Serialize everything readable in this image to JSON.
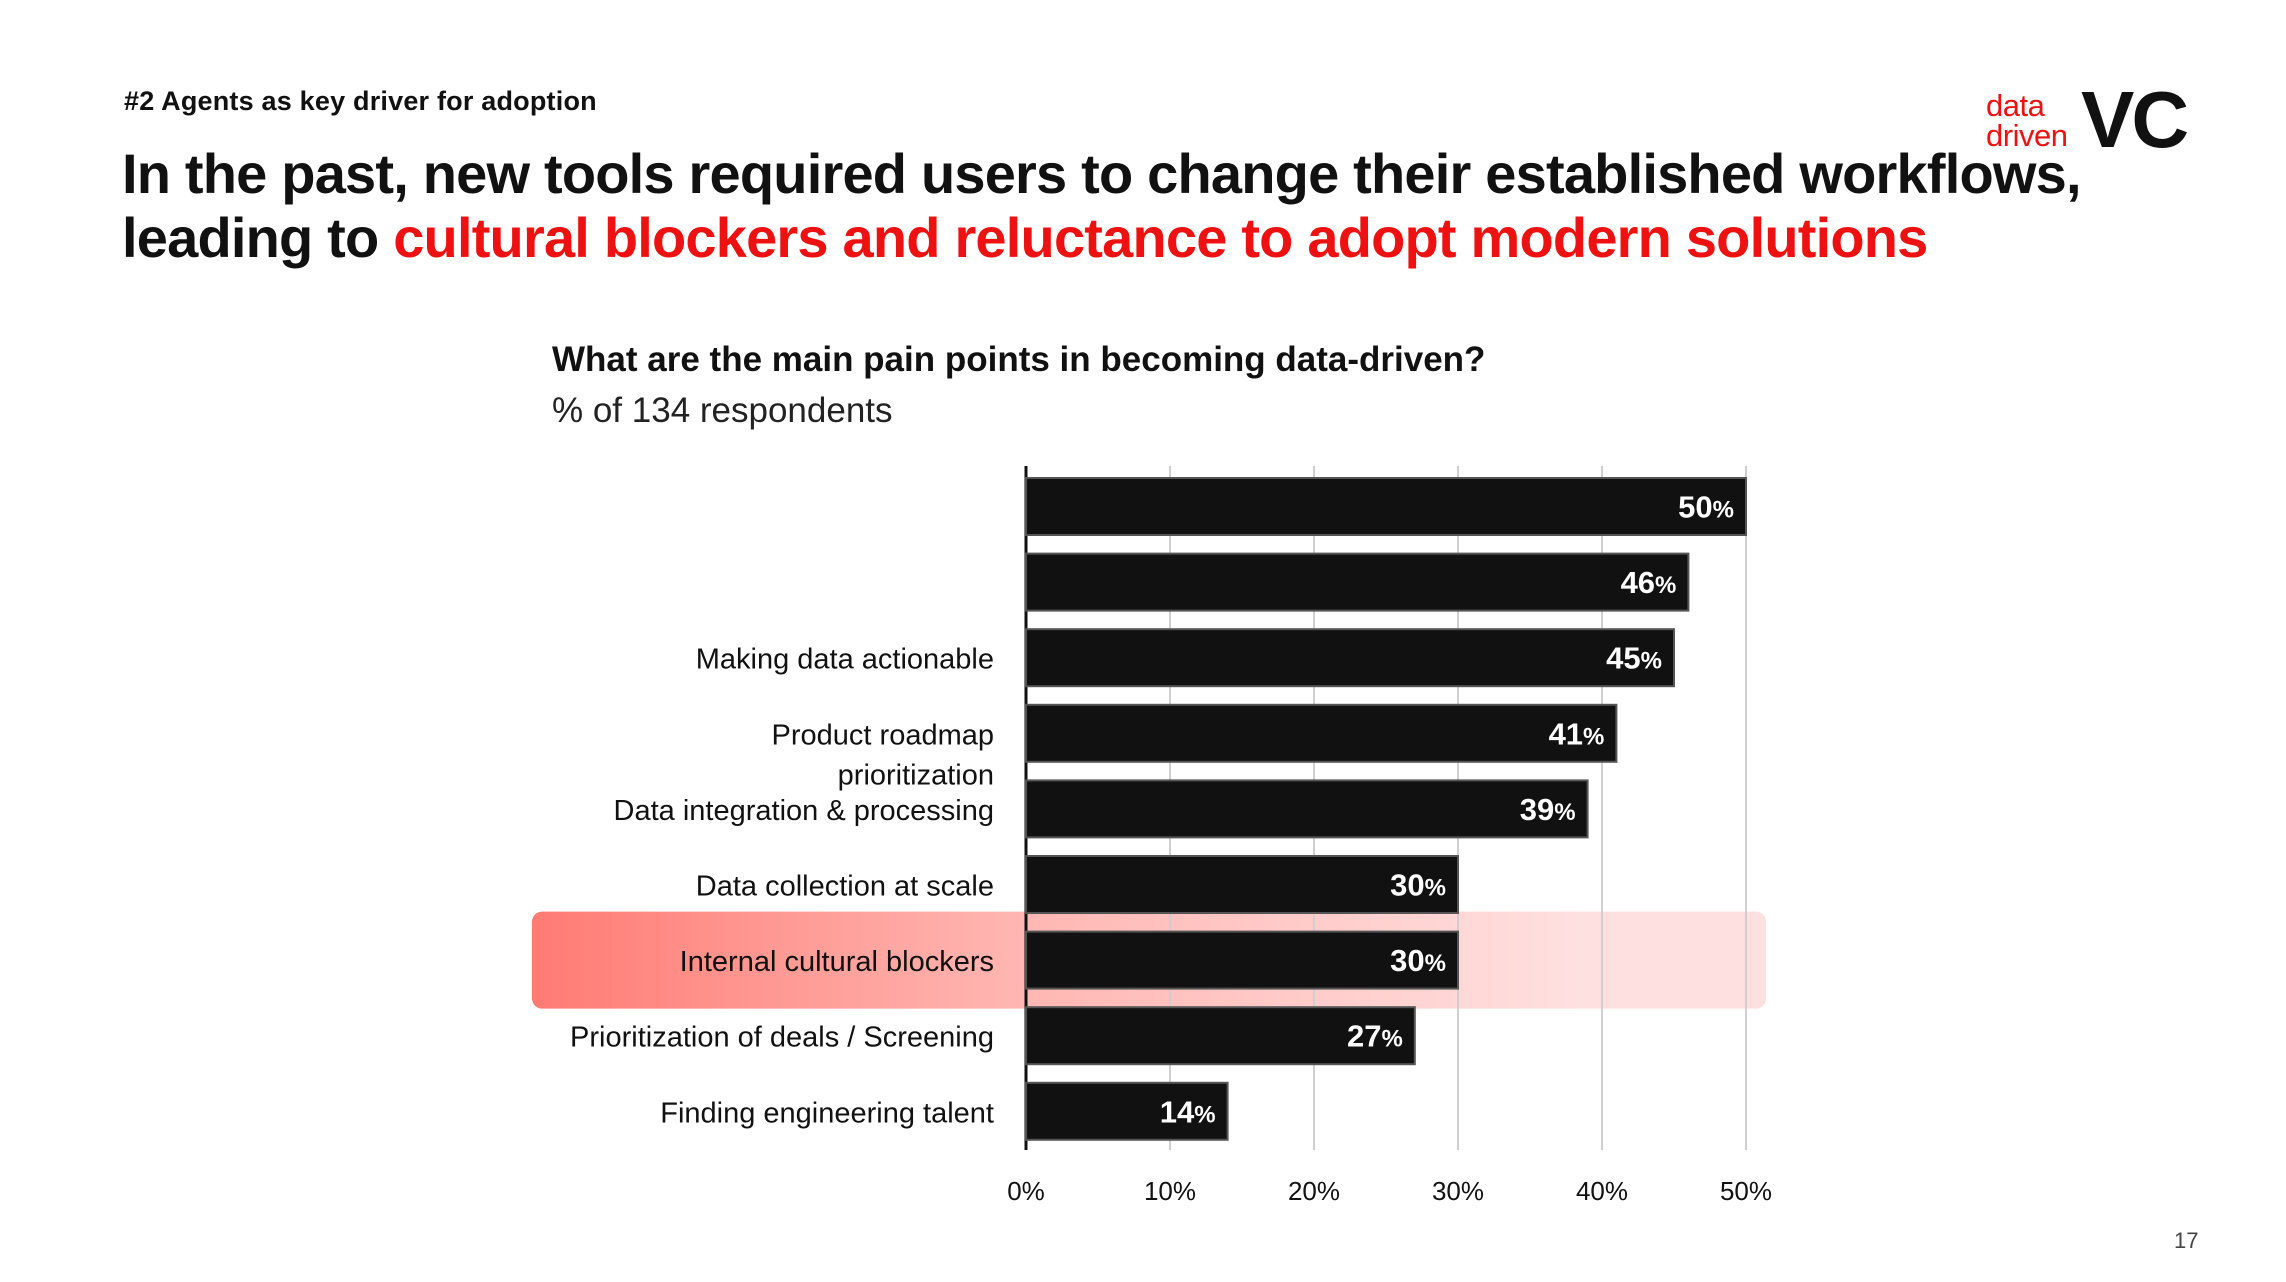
{
  "kicker": "#2 Agents as key driver for adoption",
  "headline": {
    "line1": "In the past, new tools required users to change their established workflows,",
    "line2_plain": "leading to ",
    "line2_accent": "cultural blockers and reluctance to adopt modern solutions"
  },
  "logo": {
    "word1": "data",
    "word2": "driven",
    "word3": "VC"
  },
  "colors": {
    "accent": "#ee1111",
    "bar": "#111111",
    "highlight_left": "#ff7b74",
    "highlight_right": "#ffe0e0",
    "grid": "#cfcfcf"
  },
  "chart_data": {
    "type": "bar",
    "orientation": "horizontal",
    "title": "What are the main pain points in becoming data-driven?",
    "subtitle": "% of 134 respondents",
    "categories": [
      "",
      "",
      "Making data actionable",
      "Product roadmap prioritization",
      "Data integration & processing",
      "Data collection at scale",
      "Internal cultural blockers",
      "Prioritization of deals / Screening",
      "Finding engineering talent"
    ],
    "values": [
      50,
      46,
      45,
      41,
      39,
      30,
      30,
      27,
      14
    ],
    "value_labels": [
      "50%",
      "46%",
      "45%",
      "41%",
      "39%",
      "30%",
      "30%",
      "27%",
      "14%"
    ],
    "highlighted_category": "Internal cultural blockers",
    "xlim": [
      0,
      50
    ],
    "xticks": [
      0,
      10,
      20,
      30,
      40,
      50
    ],
    "xtick_labels": [
      "0%",
      "10%",
      "20%",
      "30%",
      "40%",
      "50%"
    ],
    "grid": true
  },
  "page_number": "17"
}
